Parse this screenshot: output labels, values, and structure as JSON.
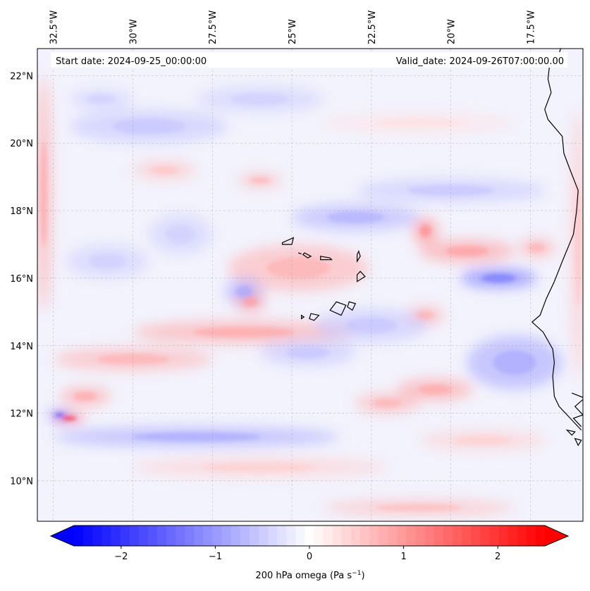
{
  "map": {
    "start_date": "Start date: 2024-09-25_00:00:00",
    "valid_date": "Valid_date: 2024-09-26T07:00:00.00",
    "extent": {
      "lon_min": -33.0,
      "lon_max": -15.85,
      "lat_min": 8.8,
      "lat_max": 22.8
    },
    "lon_ticks": [
      {
        "lon": -32.5,
        "label": "32.5°W"
      },
      {
        "lon": -30.0,
        "label": "30°W"
      },
      {
        "lon": -27.5,
        "label": "27.5°W"
      },
      {
        "lon": -25.0,
        "label": "25°W"
      },
      {
        "lon": -22.5,
        "label": "22.5°W"
      },
      {
        "lon": -20.0,
        "label": "20°W"
      },
      {
        "lon": -17.5,
        "label": "17.5°W"
      }
    ],
    "lat_ticks": [
      {
        "lat": 10,
        "label": "10°N"
      },
      {
        "lat": 12,
        "label": "12°N"
      },
      {
        "lat": 14,
        "label": "14°N"
      },
      {
        "lat": 16,
        "label": "16°N"
      },
      {
        "lat": 18,
        "label": "18°N"
      },
      {
        "lat": 20,
        "label": "20°N"
      },
      {
        "lat": 22,
        "label": "22°N"
      }
    ],
    "field": {
      "variable": "200 hPa omega",
      "units": "Pa s-1",
      "positive_color": "#ff0000",
      "negative_color": "#0000ff",
      "neutral_color": "#ffffff",
      "features": [
        {
          "lon": -26.5,
          "lat": 14.4,
          "value": 0.9,
          "rlon": 3.5,
          "rlat": 0.35
        },
        {
          "lon": -30.0,
          "lat": 13.6,
          "value": 0.8,
          "rlon": 2.5,
          "rlat": 0.35
        },
        {
          "lon": -32.0,
          "lat": 11.85,
          "value": 2.4,
          "rlon": 0.5,
          "rlat": 0.12
        },
        {
          "lon": -32.3,
          "lat": 11.95,
          "value": -2.0,
          "rlon": 0.35,
          "rlat": 0.12
        },
        {
          "lon": -31.5,
          "lat": 12.5,
          "value": 0.9,
          "rlon": 0.8,
          "rlat": 0.3
        },
        {
          "lon": -28.0,
          "lat": 11.3,
          "value": -0.9,
          "rlon": 4.5,
          "rlat": 0.3
        },
        {
          "lon": -26.0,
          "lat": 10.4,
          "value": 0.5,
          "rlon": 4.0,
          "rlat": 0.3
        },
        {
          "lon": -24.8,
          "lat": 16.3,
          "value": 0.8,
          "rlon": 2.2,
          "rlat": 0.7
        },
        {
          "lon": -26.5,
          "lat": 15.6,
          "value": -0.9,
          "rlon": 0.6,
          "rlat": 0.4
        },
        {
          "lon": -26.3,
          "lat": 15.3,
          "value": 1.0,
          "rlon": 0.5,
          "rlat": 0.3
        },
        {
          "lon": -19.5,
          "lat": 16.8,
          "value": 1.0,
          "rlon": 1.5,
          "rlat": 0.35
        },
        {
          "lon": -18.5,
          "lat": 16.0,
          "value": -1.4,
          "rlon": 1.2,
          "rlat": 0.3
        },
        {
          "lon": -18.0,
          "lat": 13.5,
          "value": -0.9,
          "rlon": 1.5,
          "rlat": 0.8
        },
        {
          "lon": -20.5,
          "lat": 12.7,
          "value": 0.9,
          "rlon": 1.2,
          "rlat": 0.35
        },
        {
          "lon": -22.0,
          "lat": 12.3,
          "value": 0.8,
          "rlon": 1.0,
          "rlat": 0.3
        },
        {
          "lon": -19.0,
          "lat": 11.2,
          "value": 0.5,
          "rlon": 2.0,
          "rlat": 0.3
        },
        {
          "lon": -21.0,
          "lat": 9.2,
          "value": 0.7,
          "rlon": 3.0,
          "rlat": 0.25
        },
        {
          "lon": -20.8,
          "lat": 14.9,
          "value": 0.8,
          "rlon": 0.6,
          "rlat": 0.3
        },
        {
          "lon": -22.5,
          "lat": 14.6,
          "value": -0.6,
          "rlon": 1.8,
          "rlat": 0.5
        },
        {
          "lon": -23.0,
          "lat": 17.8,
          "value": -0.8,
          "rlon": 2.0,
          "rlat": 0.4
        },
        {
          "lon": -20.0,
          "lat": 18.6,
          "value": -0.6,
          "rlon": 3.0,
          "rlat": 0.35
        },
        {
          "lon": -26.0,
          "lat": 18.9,
          "value": 0.8,
          "rlon": 0.7,
          "rlat": 0.2
        },
        {
          "lon": -29.0,
          "lat": 19.2,
          "value": 0.6,
          "rlon": 1.0,
          "rlat": 0.3
        },
        {
          "lon": -29.5,
          "lat": 20.5,
          "value": -0.6,
          "rlon": 2.5,
          "rlat": 0.5
        },
        {
          "lon": -31.0,
          "lat": 21.3,
          "value": -0.5,
          "rlon": 1.0,
          "rlat": 0.3
        },
        {
          "lon": -26.0,
          "lat": 21.3,
          "value": -0.5,
          "rlon": 2.0,
          "rlat": 0.4
        },
        {
          "lon": -21.0,
          "lat": 20.6,
          "value": 0.3,
          "rlon": 3.0,
          "rlat": 0.3
        },
        {
          "lon": -32.8,
          "lat": 18.5,
          "value": 0.9,
          "rlon": 0.25,
          "rlat": 3.5
        },
        {
          "lon": -16.0,
          "lat": 17.0,
          "value": 0.6,
          "rlon": 0.25,
          "rlat": 4.0
        },
        {
          "lon": -24.5,
          "lat": 13.8,
          "value": -0.6,
          "rlon": 1.5,
          "rlat": 0.4
        },
        {
          "lon": -30.8,
          "lat": 16.5,
          "value": -0.5,
          "rlon": 1.3,
          "rlat": 0.5
        },
        {
          "lon": -28.5,
          "lat": 17.3,
          "value": -0.5,
          "rlon": 1.0,
          "rlat": 0.6
        },
        {
          "lon": -20.8,
          "lat": 17.4,
          "value": 1.2,
          "rlon": 0.4,
          "rlat": 0.4
        },
        {
          "lon": -17.3,
          "lat": 16.9,
          "value": 0.8,
          "rlon": 0.6,
          "rlat": 0.3
        }
      ]
    },
    "colorbar": {
      "vmin": -2.5,
      "vmax": 2.5,
      "levels": 51,
      "ticks": [
        {
          "value": -2,
          "label": "−2"
        },
        {
          "value": -1,
          "label": "−1"
        },
        {
          "value": 0,
          "label": "0"
        },
        {
          "value": 1,
          "label": "1"
        },
        {
          "value": 2,
          "label": "2"
        }
      ],
      "label_main": "200 hPa omega (Pa s",
      "label_exp": "−1",
      "label_end": ")"
    },
    "coastline": {
      "africa": [
        [
          -16.55,
          22.8
        ],
        [
          -16.65,
          22.5
        ],
        [
          -16.9,
          22.3
        ],
        [
          -16.95,
          21.9
        ],
        [
          -16.85,
          21.5
        ],
        [
          -17.05,
          21.0
        ],
        [
          -16.95,
          20.7
        ],
        [
          -16.5,
          20.2
        ],
        [
          -16.45,
          19.7
        ],
        [
          -16.25,
          19.2
        ],
        [
          -16.0,
          18.6
        ],
        [
          -16.05,
          18.0
        ],
        [
          -16.15,
          17.3
        ],
        [
          -16.5,
          16.5
        ],
        [
          -16.75,
          15.9
        ],
        [
          -17.0,
          15.4
        ],
        [
          -17.2,
          14.9
        ],
        [
          -17.45,
          14.7
        ],
        [
          -17.1,
          14.4
        ],
        [
          -16.8,
          13.9
        ],
        [
          -16.75,
          13.5
        ],
        [
          -16.8,
          13.1
        ],
        [
          -16.75,
          12.5
        ],
        [
          -16.6,
          12.2
        ],
        [
          -16.3,
          11.9
        ],
        [
          -15.9,
          11.5
        ]
      ],
      "islands": [
        [
          [
            -25.3,
            17.05
          ],
          [
            -24.95,
            17.2
          ],
          [
            -25.0,
            17.0
          ],
          [
            -25.3,
            17.0
          ]
        ],
        [
          [
            -24.6,
            16.75
          ],
          [
            -24.4,
            16.65
          ],
          [
            -24.5,
            16.6
          ],
          [
            -24.65,
            16.7
          ]
        ],
        [
          [
            -24.1,
            16.65
          ],
          [
            -23.8,
            16.6
          ],
          [
            -23.75,
            16.55
          ],
          [
            -24.1,
            16.55
          ]
        ],
        [
          [
            -24.8,
            16.75
          ],
          [
            -24.7,
            16.72
          ]
        ],
        [
          [
            -22.9,
            16.8
          ],
          [
            -22.85,
            16.65
          ],
          [
            -22.95,
            16.5
          ],
          [
            -22.95,
            16.7
          ]
        ],
        [
          [
            -22.85,
            16.2
          ],
          [
            -22.7,
            16.05
          ],
          [
            -22.95,
            15.9
          ],
          [
            -22.95,
            16.1
          ]
        ],
        [
          [
            -23.6,
            15.3
          ],
          [
            -23.3,
            15.2
          ],
          [
            -23.45,
            14.9
          ],
          [
            -23.8,
            15.05
          ]
        ],
        [
          [
            -23.2,
            15.3
          ],
          [
            -23.0,
            15.25
          ],
          [
            -23.1,
            15.05
          ],
          [
            -23.25,
            15.15
          ]
        ],
        [
          [
            -24.4,
            14.95
          ],
          [
            -24.15,
            14.9
          ],
          [
            -24.3,
            14.75
          ],
          [
            -24.45,
            14.8
          ]
        ],
        [
          [
            -24.7,
            14.9
          ],
          [
            -24.62,
            14.85
          ],
          [
            -24.7,
            14.8
          ]
        ]
      ],
      "guinea_bissau": [
        [
          -16.2,
          12.6
        ],
        [
          -15.8,
          12.45
        ],
        [
          -16.1,
          12.2
        ],
        [
          -15.85,
          11.95
        ],
        [
          -16.15,
          11.85
        ],
        [
          -15.9,
          11.6
        ]
      ],
      "bijagos": [
        [
          [
            -16.35,
            11.5
          ],
          [
            -16.1,
            11.45
          ],
          [
            -16.2,
            11.35
          ]
        ],
        [
          [
            -16.1,
            11.25
          ],
          [
            -15.9,
            11.2
          ],
          [
            -16.0,
            11.05
          ]
        ]
      ]
    }
  }
}
